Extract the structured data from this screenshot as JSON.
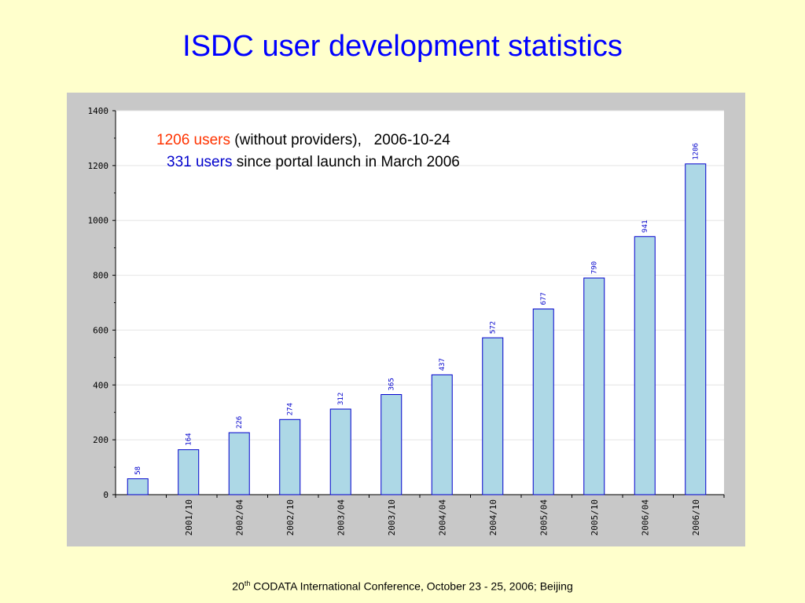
{
  "title": "ISDC user development statistics",
  "annotations": {
    "line1_highlight": "1206 users",
    "line1_rest": " (without providers),   2006-10-24",
    "line2_highlight": "331 users",
    "line2_rest": " since portal launch in March 2006"
  },
  "footer": {
    "ordinal_number": "20",
    "ordinal_suffix": "th",
    "text": " CODATA International Conference, October 23 - 25, 2006; Beijing"
  },
  "colors": {
    "background": "#ffffcc",
    "title": "#0000ff",
    "bar_fill": "#add8e6",
    "bar_stroke": "#0000cc",
    "highlight_red": "#ff3300",
    "highlight_blue": "#0000cc"
  },
  "chart_data": {
    "type": "bar",
    "categories": [
      "",
      "2001/10",
      "2002/04",
      "2002/10",
      "2003/04",
      "2003/10",
      "2004/04",
      "2004/10",
      "2005/04",
      "2005/10",
      "2006/04",
      "2006/10"
    ],
    "values": [
      58,
      164,
      226,
      274,
      312,
      365,
      437,
      572,
      677,
      790,
      941,
      1206
    ],
    "title": "",
    "xlabel": "",
    "ylabel": "",
    "ylim": [
      0,
      1400
    ],
    "yticks": [
      0,
      200,
      400,
      600,
      800,
      1000,
      1200,
      1400
    ],
    "grid": true,
    "legend": "none"
  }
}
